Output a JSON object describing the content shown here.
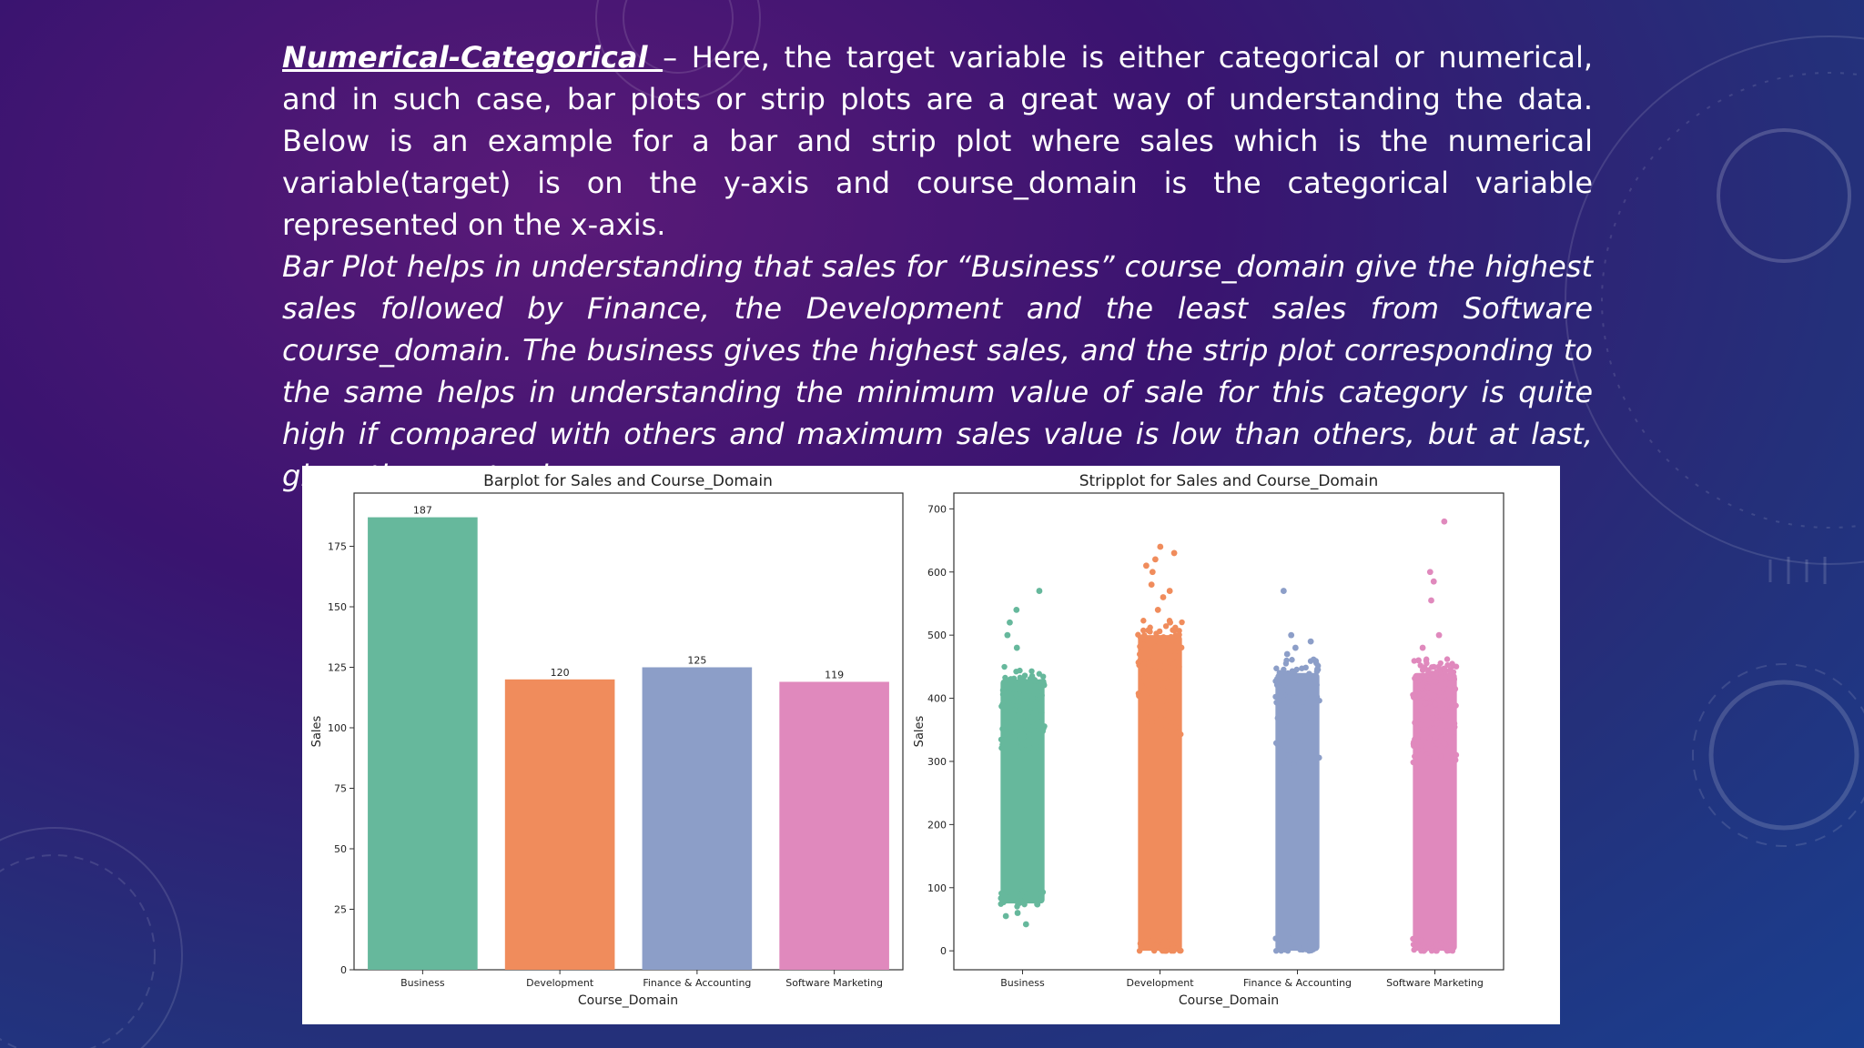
{
  "text": {
    "lead": "Numerical-Categorical ",
    "para1": " – Here, the target variable is either categorical or numerical, and in such case, bar plots or strip plots are a great way of understanding the data. Below is an example for a bar and strip plot where sales which is the numerical variable(target) is on the y-axis and course_domain is the categorical variable represented on the x-axis.",
    "para2": "Bar Plot helps in understanding that sales for “Business” course_domain give the highest sales followed by Finance, the Development and the least sales from Software course_domain. The business gives the highest sales, and the strip plot corresponding to the same helps in understanding the minimum value of sale for this category is quite high if compared with others and maximum sales value is low than others, but at last, gives the most sales"
  },
  "colors": {
    "Business": "#66b89c",
    "Development": "#f08c5c",
    "Finance & Accounting": "#8c9ec8",
    "Software Marketing": "#e089bd"
  },
  "chart_data": [
    {
      "type": "bar",
      "title": "Barplot for Sales and Course_Domain",
      "xlabel": "Course_Domain",
      "ylabel": "Sales",
      "categories": [
        "Business",
        "Development",
        "Finance & Accounting",
        "Software Marketing"
      ],
      "values": [
        187,
        120,
        125,
        119
      ],
      "data_labels": [
        "187",
        "120",
        "125",
        "119"
      ],
      "ylim": [
        0,
        197
      ],
      "yticks": [
        0,
        25,
        50,
        75,
        100,
        125,
        150,
        175
      ],
      "grid": false,
      "legend": "none"
    },
    {
      "type": "scatter",
      "subtype": "strip",
      "title": "Stripplot for Sales and Course_Domain",
      "xlabel": "Course_Domain",
      "ylabel": "Sales",
      "categories": [
        "Business",
        "Development",
        "Finance & Accounting",
        "Software Marketing"
      ],
      "ranges": [
        {
          "category": "Business",
          "dense_min": 75,
          "dense_max": 430,
          "min": 42,
          "max": 570
        },
        {
          "category": "Development",
          "dense_min": 0,
          "dense_max": 500,
          "min": 0,
          "max": 640
        },
        {
          "category": "Finance & Accounting",
          "dense_min": 0,
          "dense_max": 440,
          "min": 0,
          "max": 570
        },
        {
          "category": "Software Marketing",
          "dense_min": 0,
          "dense_max": 440,
          "min": 0,
          "max": 680
        }
      ],
      "outliers": [
        {
          "category": "Business",
          "values": [
            42,
            55,
            60,
            480,
            500,
            520,
            540,
            570
          ]
        },
        {
          "category": "Development",
          "values": [
            520,
            540,
            560,
            570,
            580,
            600,
            610,
            620,
            630,
            640
          ]
        },
        {
          "category": "Finance & Accounting",
          "values": [
            470,
            480,
            490,
            500,
            570
          ]
        },
        {
          "category": "Software Marketing",
          "values": [
            460,
            480,
            500,
            555,
            585,
            600,
            680
          ]
        }
      ],
      "ylim": [
        -30,
        725
      ],
      "yticks": [
        0,
        100,
        200,
        300,
        400,
        500,
        600,
        700
      ],
      "grid": false,
      "legend": "none"
    }
  ]
}
